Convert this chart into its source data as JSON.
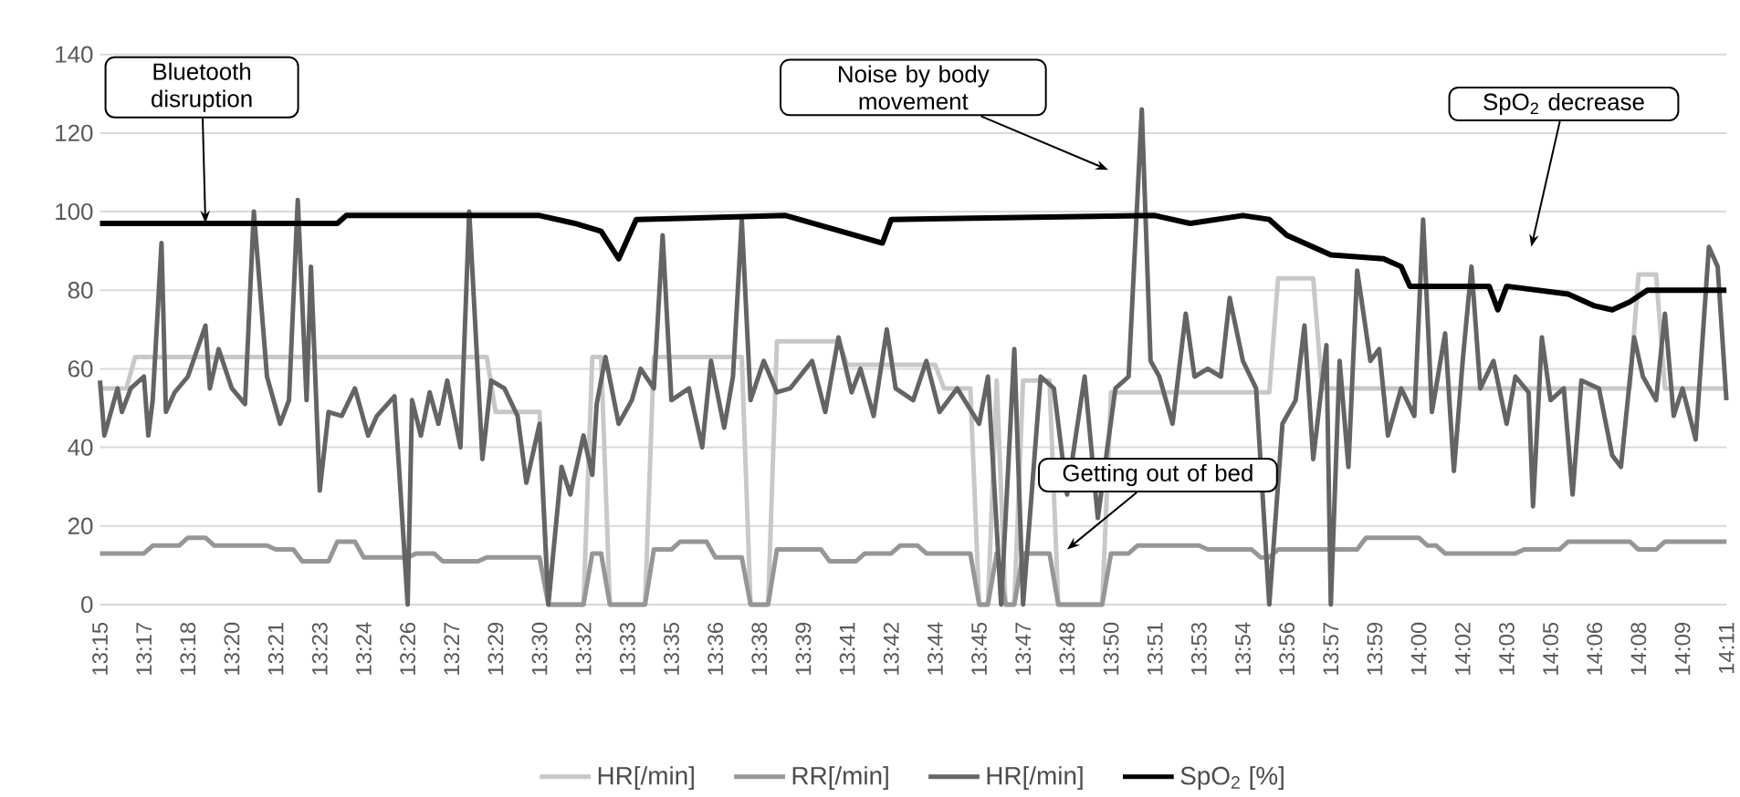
{
  "chart_data": {
    "type": "line",
    "xlim": [
      13.25,
      14.175
    ],
    "ylim": [
      0,
      140
    ],
    "yticks": [
      0,
      20,
      40,
      60,
      80,
      100,
      120,
      140
    ],
    "xticks": [
      {
        "value": 13.25,
        "label": "13:15"
      },
      {
        "value": 13.275,
        "label": "13:17"
      },
      {
        "value": 13.3,
        "label": "13:18"
      },
      {
        "value": 13.325,
        "label": "13:20"
      },
      {
        "value": 13.35,
        "label": "13:21"
      },
      {
        "value": 13.375,
        "label": "13:23"
      },
      {
        "value": 13.4,
        "label": "13:24"
      },
      {
        "value": 13.425,
        "label": "13:26"
      },
      {
        "value": 13.45,
        "label": "13:27"
      },
      {
        "value": 13.475,
        "label": "13:29"
      },
      {
        "value": 13.5,
        "label": "13:30"
      },
      {
        "value": 13.525,
        "label": "13:32"
      },
      {
        "value": 13.55,
        "label": "13:33"
      },
      {
        "value": 13.575,
        "label": "13:35"
      },
      {
        "value": 13.6,
        "label": "13:36"
      },
      {
        "value": 13.625,
        "label": "13:38"
      },
      {
        "value": 13.65,
        "label": "13:39"
      },
      {
        "value": 13.675,
        "label": "13:41"
      },
      {
        "value": 13.7,
        "label": "13:42"
      },
      {
        "value": 13.725,
        "label": "13:44"
      },
      {
        "value": 13.75,
        "label": "13:45"
      },
      {
        "value": 13.775,
        "label": "13:47"
      },
      {
        "value": 13.8,
        "label": "13:48"
      },
      {
        "value": 13.825,
        "label": "13:50"
      },
      {
        "value": 13.85,
        "label": "13:51"
      },
      {
        "value": 13.875,
        "label": "13:53"
      },
      {
        "value": 13.9,
        "label": "13:54"
      },
      {
        "value": 13.925,
        "label": "13:56"
      },
      {
        "value": 13.95,
        "label": "13:57"
      },
      {
        "value": 13.975,
        "label": "13:59"
      },
      {
        "value": 14.0,
        "label": "14:00"
      },
      {
        "value": 14.025,
        "label": "14:02"
      },
      {
        "value": 14.05,
        "label": "14:03"
      },
      {
        "value": 14.075,
        "label": "14:05"
      },
      {
        "value": 14.1,
        "label": "14:06"
      },
      {
        "value": 14.125,
        "label": "14:08"
      },
      {
        "value": 14.15,
        "label": "14:09"
      },
      {
        "value": 14.175,
        "label": "14:11"
      }
    ],
    "grid": "y",
    "legend": "bottom",
    "marker": "none",
    "line_style": "solid",
    "series": [
      {
        "name": "HR[/min]",
        "color": "#c8c8c8",
        "x": [
          13.25,
          13.265,
          13.27,
          13.47,
          13.475,
          13.5,
          13.505,
          13.525,
          13.53,
          13.535,
          13.54,
          13.56,
          13.565,
          13.615,
          13.62,
          13.63,
          13.635,
          13.67,
          13.675,
          13.725,
          13.73,
          13.745,
          13.75,
          13.755,
          13.76,
          13.765,
          13.77,
          13.775,
          13.79,
          13.795,
          13.82,
          13.825,
          13.915,
          13.92,
          13.94,
          13.945,
          14.12,
          14.125,
          14.135,
          14.14,
          14.175
        ],
        "values": [
          55,
          55,
          63,
          63,
          49,
          49,
          0,
          0,
          63,
          63,
          0,
          0,
          63,
          63,
          0,
          0,
          67,
          67,
          61,
          61,
          55,
          55,
          0,
          0,
          57,
          0,
          0,
          57,
          57,
          0,
          0,
          54,
          54,
          83,
          83,
          55,
          55,
          84,
          84,
          55,
          55
        ]
      },
      {
        "name": "RR[/min]",
        "color": "#969696",
        "x": [
          13.25,
          13.275,
          13.28,
          13.295,
          13.3,
          13.31,
          13.315,
          13.345,
          13.35,
          13.36,
          13.365,
          13.38,
          13.385,
          13.395,
          13.4,
          13.425,
          13.43,
          13.44,
          13.445,
          13.465,
          13.47,
          13.5,
          13.505,
          13.525,
          13.53,
          13.535,
          13.54,
          13.56,
          13.565,
          13.575,
          13.58,
          13.595,
          13.6,
          13.615,
          13.62,
          13.63,
          13.635,
          13.66,
          13.665,
          13.68,
          13.685,
          13.7,
          13.705,
          13.715,
          13.72,
          13.745,
          13.75,
          13.755,
          13.76,
          13.765,
          13.77,
          13.775,
          13.79,
          13.795,
          13.82,
          13.825,
          13.835,
          13.84,
          13.875,
          13.88,
          13.905,
          13.91,
          13.915,
          13.92,
          13.965,
          13.97,
          14.0,
          14.005,
          14.01,
          14.015,
          14.055,
          14.06,
          14.08,
          14.085,
          14.12,
          14.125,
          14.135,
          14.14,
          14.175
        ],
        "values": [
          13,
          13,
          15,
          15,
          17,
          17,
          15,
          15,
          14,
          14,
          11,
          11,
          16,
          16,
          12,
          12,
          13,
          13,
          11,
          11,
          12,
          12,
          0,
          0,
          13,
          13,
          0,
          0,
          14,
          14,
          16,
          16,
          12,
          12,
          0,
          0,
          14,
          14,
          11,
          11,
          13,
          13,
          15,
          15,
          13,
          13,
          0,
          0,
          13,
          0,
          0,
          13,
          13,
          0,
          0,
          13,
          13,
          15,
          15,
          14,
          14,
          12,
          12,
          14,
          14,
          17,
          17,
          15,
          15,
          13,
          13,
          14,
          14,
          16,
          16,
          14,
          14,
          16,
          16
        ]
      },
      {
        "name": "HR[/min]",
        "color": "#646464",
        "x": [
          13.25,
          13.2525,
          13.26,
          13.2625,
          13.2675,
          13.275,
          13.2775,
          13.28,
          13.285,
          13.2875,
          13.2925,
          13.3,
          13.31,
          13.3125,
          13.3175,
          13.325,
          13.3325,
          13.3375,
          13.345,
          13.3525,
          13.3575,
          13.3625,
          13.3675,
          13.37,
          13.375,
          13.38,
          13.3875,
          13.395,
          13.4025,
          13.4075,
          13.4175,
          13.425,
          13.4275,
          13.4325,
          13.4375,
          13.4425,
          13.4475,
          13.455,
          13.46,
          13.4675,
          13.4725,
          13.48,
          13.4875,
          13.4925,
          13.5,
          13.505,
          13.5125,
          13.5175,
          13.525,
          13.53,
          13.5325,
          13.5375,
          13.545,
          13.5525,
          13.5575,
          13.565,
          13.57,
          13.575,
          13.585,
          13.5925,
          13.5975,
          13.605,
          13.61,
          13.615,
          13.62,
          13.6275,
          13.635,
          13.6425,
          13.655,
          13.6625,
          13.67,
          13.6775,
          13.6825,
          13.69,
          13.6975,
          13.7025,
          13.7125,
          13.72,
          13.7275,
          13.7375,
          13.75,
          13.755,
          13.7625,
          13.77,
          13.775,
          13.785,
          13.7925,
          13.8,
          13.81,
          13.8175,
          13.8275,
          13.835,
          13.8425,
          13.8475,
          13.8525,
          13.86,
          13.8675,
          13.8725,
          13.88,
          13.8875,
          13.8925,
          13.9,
          13.9075,
          13.915,
          13.9225,
          13.93,
          13.935,
          13.94,
          13.9475,
          13.95,
          13.955,
          13.96,
          13.965,
          13.9725,
          13.9775,
          13.9825,
          13.99,
          13.9975,
          14.0025,
          14.0075,
          14.015,
          14.02,
          14.025,
          14.03,
          14.035,
          14.0425,
          14.05,
          14.055,
          14.0625,
          14.065,
          14.07,
          14.075,
          14.0825,
          14.0875,
          14.0925,
          14.1025,
          14.11,
          14.115,
          14.1225,
          14.1275,
          14.135,
          14.14,
          14.145,
          14.15,
          14.1575,
          14.165,
          14.17,
          14.175
        ],
        "values": [
          57,
          43,
          55,
          49,
          55,
          58,
          43,
          52,
          92,
          49,
          54,
          58,
          71,
          55,
          65,
          55,
          51,
          100,
          58,
          46,
          52,
          103,
          52,
          86,
          29,
          49,
          48,
          55,
          43,
          48,
          53,
          0,
          52,
          43,
          54,
          46,
          57,
          40,
          100,
          37,
          57,
          55,
          48,
          31,
          46,
          0,
          35,
          28,
          43,
          33,
          51,
          63,
          46,
          52,
          60,
          55,
          94,
          52,
          55,
          40,
          62,
          45,
          58,
          98,
          52,
          62,
          54,
          55,
          62,
          49,
          68,
          54,
          60,
          48,
          70,
          55,
          52,
          62,
          49,
          55,
          46,
          58,
          0,
          65,
          0,
          58,
          55,
          28,
          58,
          22,
          55,
          58,
          126,
          62,
          58,
          46,
          74,
          58,
          60,
          58,
          78,
          62,
          55,
          0,
          46,
          52,
          71,
          37,
          66,
          0,
          62,
          35,
          85,
          62,
          65,
          43,
          55,
          48,
          98,
          49,
          69,
          34,
          62,
          86,
          55,
          62,
          46,
          58,
          54,
          25,
          68,
          52,
          55,
          28,
          57,
          55,
          38,
          35,
          68,
          58,
          52,
          74,
          48,
          55,
          42,
          91,
          86,
          52
        ]
      },
      {
        "name": "SpO$_{2}$ [%]",
        "color": "#000000",
        "x": [
          13.25,
          13.385,
          13.39,
          13.5,
          13.52,
          13.535,
          13.545,
          13.555,
          13.64,
          13.695,
          13.7,
          13.85,
          13.87,
          13.9,
          13.915,
          13.925,
          13.95,
          13.98,
          13.99,
          13.995,
          14.04,
          14.045,
          14.05,
          14.085,
          14.1,
          14.11,
          14.12,
          14.13,
          14.175
        ],
        "values": [
          97,
          97,
          99,
          99,
          97,
          95,
          88,
          98,
          99,
          92,
          98,
          99,
          97,
          99,
          98,
          94,
          89,
          88,
          86,
          81,
          81,
          75,
          81,
          79,
          76,
          75,
          77,
          80,
          80
        ]
      }
    ],
    "annotations": [
      {
        "text": "Bluetooth disruption",
        "x": 13.31,
        "y": 97
      },
      "Noise by body movement",
      {
        "text": "Getting out of bed",
        "x": 13.8,
        "y": 14
      },
      "SpO$_{2}$ decrease"
    ]
  }
}
